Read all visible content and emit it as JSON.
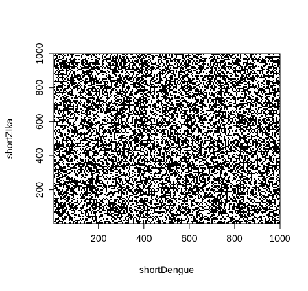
{
  "chart_data": {
    "type": "heatmap",
    "title": "",
    "xlabel": "shortDengue",
    "ylabel": "shortZIka",
    "xlim": [
      1,
      1000
    ],
    "ylim": [
      1,
      1000
    ],
    "x_ticks": [
      200,
      400,
      600,
      800,
      1000
    ],
    "y_ticks": [
      200,
      400,
      600,
      800,
      1000
    ],
    "grid": false,
    "legend": "none",
    "colors": {
      "ink": "#000000",
      "background": "#ffffff"
    },
    "description_of_marks": "dense binary dot-plot pattern over the full plotting region"
  }
}
